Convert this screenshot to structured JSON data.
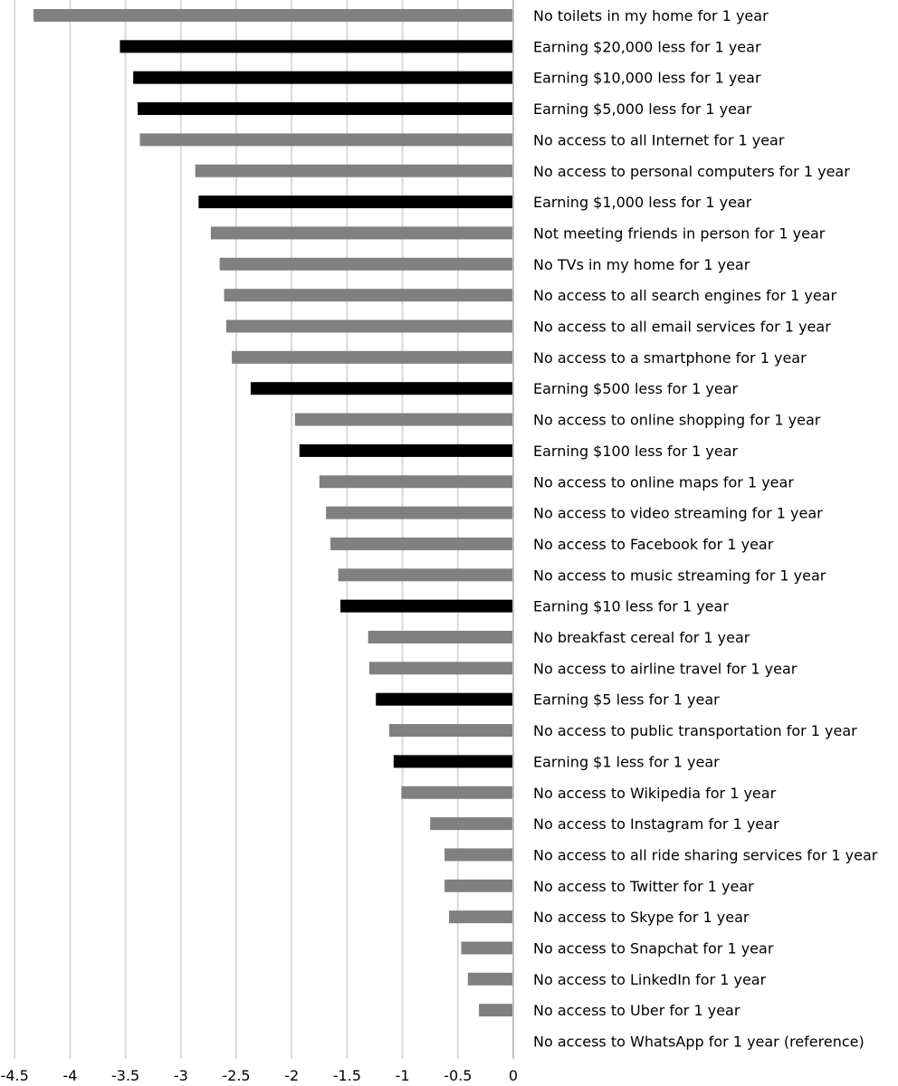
{
  "chart_data": {
    "type": "bar",
    "orientation": "horizontal",
    "title": "",
    "xlabel": "",
    "ylabel": "",
    "xlim": [
      -4.5,
      0
    ],
    "grid": true,
    "colors": {
      "earning": "#000000",
      "other": "#808080",
      "grid": "#d9d9d9",
      "axis": "#bfbfbf"
    },
    "x_ticks": [
      "-4.5",
      "-4",
      "-3.5",
      "-3",
      "-2.5",
      "-2",
      "-1.5",
      "-1",
      "-0.5",
      "0"
    ],
    "categories": [
      "No toilets in my home for 1 year",
      "Earning $20,000 less for 1 year",
      "Earning $10,000 less for 1 year",
      "Earning $5,000 less for 1 year",
      "No access to all Internet for 1 year",
      "No access to personal computers for 1 year",
      "Earning $1,000 less for 1 year",
      "Not meeting friends in person for 1 year",
      "No TVs in my home for 1 year",
      "No access to all search engines for 1 year",
      "No access to all email services for 1 year",
      "No access to a smartphone for 1 year",
      "Earning $500 less for 1 year",
      "No access to online shopping for 1 year",
      "Earning $100 less for 1 year",
      "No access to online maps for 1 year",
      "No access to video streaming for 1 year",
      "No access to Facebook for 1 year",
      "No access to music streaming for 1 year",
      "Earning $10 less for 1 year",
      "No breakfast cereal for 1 year",
      "No access to airline travel for 1 year",
      "Earning $5 less for 1 year",
      "No access to public transportation for 1 year",
      "Earning $1 less for 1 year",
      "No access to Wikipedia for 1 year",
      "No access to Instagram for 1 year",
      "No access to all ride sharing services for 1 year",
      "No access to Twitter for 1 year",
      "No access to Skype for 1 year",
      "No access to Snapchat for 1 year",
      "No access to LinkedIn for 1 year",
      "No access to Uber for 1 year",
      "No access to WhatsApp for 1 year (reference)"
    ],
    "values": [
      -4.33,
      -3.55,
      -3.43,
      -3.39,
      -3.37,
      -2.87,
      -2.84,
      -2.73,
      -2.65,
      -2.61,
      -2.59,
      -2.54,
      -2.37,
      -1.97,
      -1.93,
      -1.75,
      -1.69,
      -1.65,
      -1.58,
      -1.56,
      -1.31,
      -1.3,
      -1.24,
      -1.12,
      -1.08,
      -1.01,
      -0.75,
      -0.62,
      -0.62,
      -0.58,
      -0.47,
      -0.41,
      -0.31,
      0
    ],
    "groups": [
      "other",
      "earning",
      "earning",
      "earning",
      "other",
      "other",
      "earning",
      "other",
      "other",
      "other",
      "other",
      "other",
      "earning",
      "other",
      "earning",
      "other",
      "other",
      "other",
      "other",
      "earning",
      "other",
      "other",
      "earning",
      "other",
      "earning",
      "other",
      "other",
      "other",
      "other",
      "other",
      "other",
      "other",
      "other",
      "other"
    ]
  }
}
